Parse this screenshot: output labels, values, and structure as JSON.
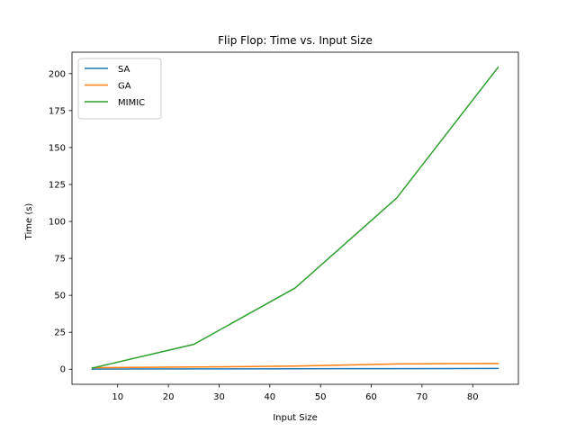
{
  "chart_data": {
    "type": "line",
    "title": "Flip Flop: Time vs. Input Size",
    "xlabel": "Input Size",
    "ylabel": "Time (s)",
    "x": [
      5,
      25,
      45,
      65,
      85
    ],
    "xlim": [
      1,
      89
    ],
    "ylim": [
      -10.2,
      214.5
    ],
    "xticks": [
      10,
      20,
      30,
      40,
      50,
      60,
      70,
      80
    ],
    "yticks": [
      0,
      25,
      50,
      75,
      100,
      125,
      150,
      175,
      200
    ],
    "grid": false,
    "legend_position": "top-left",
    "series": [
      {
        "name": "SA",
        "color": "#1f77b4",
        "values": [
          0.1,
          0.2,
          0.3,
          0.4,
          0.5
        ]
      },
      {
        "name": "GA",
        "color": "#ff7f0e",
        "values": [
          1.0,
          1.5,
          2.1,
          3.6,
          3.9
        ]
      },
      {
        "name": "MIMIC",
        "color": "#2ca02c",
        "values": [
          0.8,
          16.8,
          55.0,
          115.8,
          204.3
        ]
      }
    ]
  }
}
